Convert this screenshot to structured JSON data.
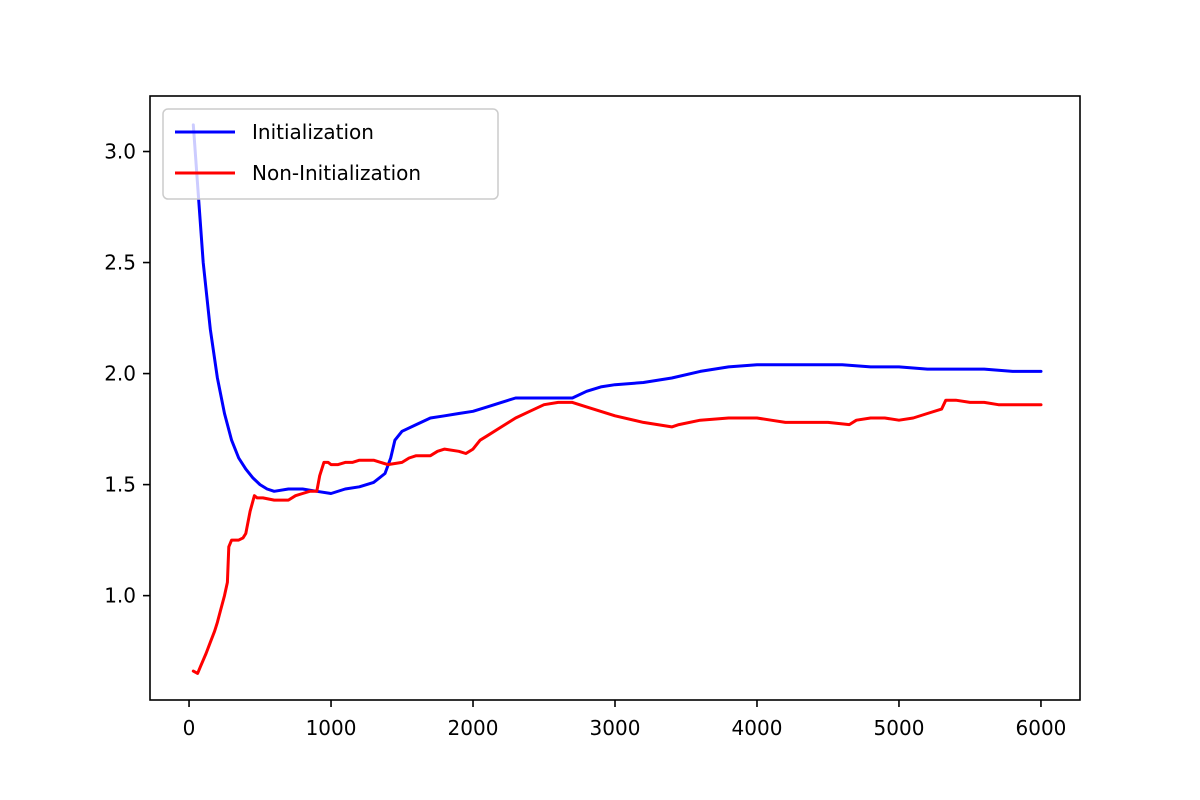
{
  "chart_data": {
    "type": "line",
    "title": "",
    "xlabel": "",
    "ylabel": "",
    "xlim": [
      -275,
      6275
    ],
    "ylim": [
      0.53,
      3.25
    ],
    "x_ticks": [
      0,
      1000,
      2000,
      3000,
      4000,
      5000,
      6000
    ],
    "x_tick_labels": [
      "0",
      "1000",
      "2000",
      "3000",
      "4000",
      "5000",
      "6000"
    ],
    "y_ticks": [
      1.0,
      1.5,
      2.0,
      2.5,
      3.0
    ],
    "y_tick_labels": [
      "1.0",
      "1.5",
      "2.0",
      "2.5",
      "3.0"
    ],
    "grid": false,
    "legend_position": "upper-left",
    "series": [
      {
        "name": "Initialization",
        "color": "#0000ff",
        "x": [
          30,
          60,
          100,
          150,
          200,
          250,
          300,
          350,
          400,
          450,
          500,
          550,
          600,
          700,
          800,
          900,
          1000,
          1100,
          1200,
          1300,
          1380,
          1420,
          1450,
          1500,
          1600,
          1700,
          1800,
          1900,
          2000,
          2100,
          2200,
          2300,
          2400,
          2500,
          2600,
          2700,
          2800,
          2900,
          3000,
          3200,
          3400,
          3600,
          3800,
          4000,
          4200,
          4400,
          4600,
          4800,
          5000,
          5200,
          5400,
          5600,
          5800,
          6000
        ],
        "y": [
          3.12,
          2.85,
          2.5,
          2.2,
          1.98,
          1.82,
          1.7,
          1.62,
          1.57,
          1.53,
          1.5,
          1.48,
          1.47,
          1.48,
          1.48,
          1.47,
          1.46,
          1.48,
          1.49,
          1.51,
          1.55,
          1.62,
          1.7,
          1.74,
          1.77,
          1.8,
          1.81,
          1.82,
          1.83,
          1.85,
          1.87,
          1.89,
          1.89,
          1.89,
          1.89,
          1.89,
          1.92,
          1.94,
          1.95,
          1.96,
          1.98,
          2.01,
          2.03,
          2.04,
          2.04,
          2.04,
          2.04,
          2.03,
          2.03,
          2.02,
          2.02,
          2.02,
          2.01,
          2.01
        ]
      },
      {
        "name": "Non-Initialization",
        "color": "#ff0000",
        "x": [
          30,
          60,
          80,
          120,
          150,
          180,
          200,
          220,
          250,
          270,
          280,
          300,
          350,
          380,
          400,
          430,
          460,
          480,
          520,
          600,
          650,
          700,
          750,
          800,
          850,
          900,
          920,
          950,
          980,
          1000,
          1050,
          1100,
          1150,
          1200,
          1250,
          1300,
          1400,
          1500,
          1550,
          1600,
          1700,
          1750,
          1800,
          1900,
          1950,
          2000,
          2050,
          2100,
          2200,
          2300,
          2400,
          2500,
          2600,
          2700,
          2800,
          3000,
          3200,
          3400,
          3450,
          3600,
          3800,
          4000,
          4100,
          4200,
          4300,
          4500,
          4650,
          4700,
          4800,
          4900,
          5000,
          5100,
          5200,
          5300,
          5330,
          5400,
          5500,
          5600,
          5700,
          5800,
          6000
        ],
        "y": [
          0.66,
          0.65,
          0.68,
          0.74,
          0.79,
          0.84,
          0.88,
          0.93,
          1.0,
          1.06,
          1.22,
          1.25,
          1.25,
          1.26,
          1.28,
          1.38,
          1.45,
          1.44,
          1.44,
          1.43,
          1.43,
          1.43,
          1.45,
          1.46,
          1.47,
          1.47,
          1.54,
          1.6,
          1.6,
          1.59,
          1.59,
          1.6,
          1.6,
          1.61,
          1.61,
          1.61,
          1.59,
          1.6,
          1.62,
          1.63,
          1.63,
          1.65,
          1.66,
          1.65,
          1.64,
          1.66,
          1.7,
          1.72,
          1.76,
          1.8,
          1.83,
          1.86,
          1.87,
          1.87,
          1.85,
          1.81,
          1.78,
          1.76,
          1.77,
          1.79,
          1.8,
          1.8,
          1.79,
          1.78,
          1.78,
          1.78,
          1.77,
          1.79,
          1.8,
          1.8,
          1.79,
          1.8,
          1.82,
          1.84,
          1.88,
          1.88,
          1.87,
          1.87,
          1.86,
          1.86,
          1.86
        ]
      }
    ]
  }
}
